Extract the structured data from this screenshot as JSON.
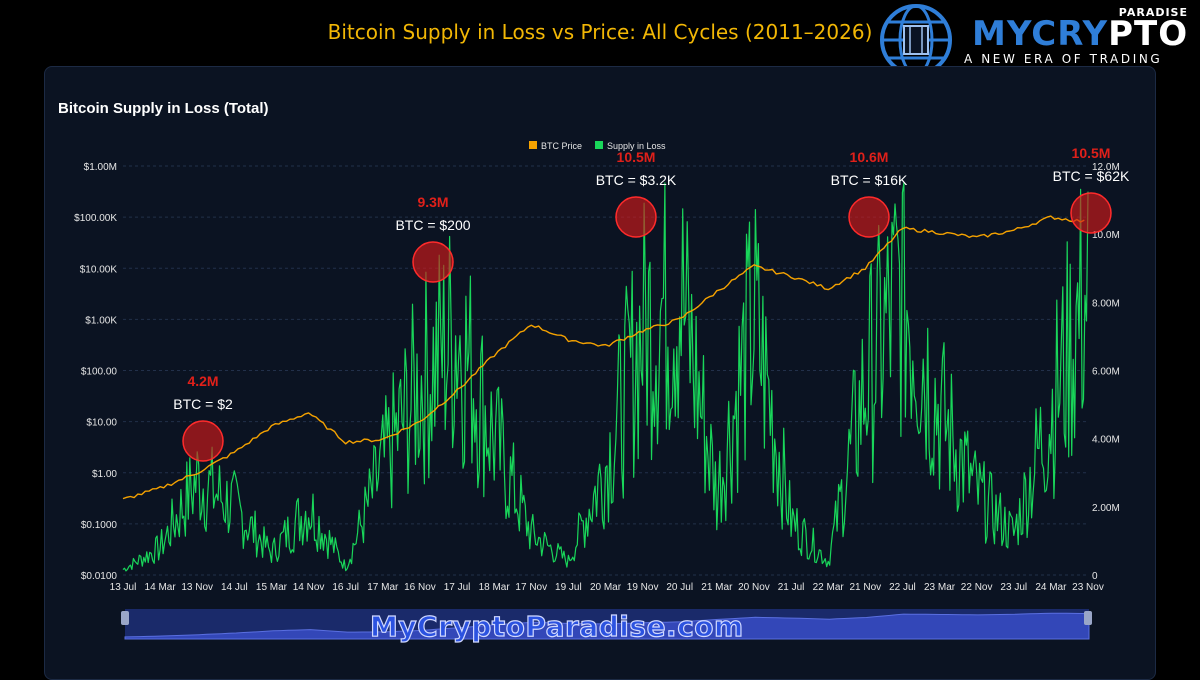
{
  "page": {
    "title": "Bitcoin Supply in Loss vs Price: All Cycles (2011–2026)",
    "watermark": "MyCryptoParadise.com"
  },
  "logo": {
    "brand_blue": "MYCRY",
    "brand_white": "PTO",
    "paradise": "PARADISE",
    "tagline": "A NEW ERA OF TRADING",
    "icon": "globe-circuit-icon"
  },
  "colors": {
    "price": "#f5a200",
    "supply": "#19d65a",
    "marker": "#d11a1a",
    "annotation_value": "#e0201a",
    "title": "#f2b705"
  },
  "chart_data": {
    "type": "line",
    "title": "Bitcoin Supply in Loss (Total)",
    "legend": {
      "position": "top-center",
      "entries": [
        "BTC Price",
        "Supply in Loss"
      ]
    },
    "x_ticks": [
      "13 Jul",
      "14 Mar",
      "13 Nov",
      "14 Jul",
      "15 Mar",
      "14 Nov",
      "16 Jul",
      "17 Mar",
      "16 Nov",
      "17 Jul",
      "18 Mar",
      "17 Nov",
      "19 Jul",
      "20 Mar",
      "19 Nov",
      "20 Jul",
      "21 Mar",
      "20 Nov",
      "21 Jul",
      "22 Mar",
      "21 Nov",
      "22 Jul",
      "23 Mar",
      "22 Nov",
      "23 Jul",
      "24 Mar",
      "23 Nov"
    ],
    "y_left": {
      "scale": "log",
      "ticks": [
        "$0.0100",
        "$0.1000",
        "$1.00",
        "$10.00",
        "$100.00",
        "$1.00K",
        "$10.00K",
        "$100.00K",
        "$1.00M"
      ],
      "range": [
        0.01,
        1000000
      ]
    },
    "y_right": {
      "scale": "linear",
      "ticks": [
        "0",
        "2.00M",
        "4.00M",
        "6.00M",
        "8.00M",
        "10.0M",
        "12.0M"
      ],
      "range": [
        0,
        12000000
      ]
    },
    "grid": "horizontal dashed",
    "series": [
      {
        "name": "BTC Price",
        "axis": "left",
        "x": [
          0,
          1,
          2,
          3,
          4,
          5,
          6,
          7,
          8,
          9,
          10,
          11,
          12,
          13,
          14,
          15,
          16,
          17,
          18,
          19,
          20,
          21,
          22,
          23,
          24,
          25,
          26
        ],
        "values": [
          0.3,
          0.5,
          1.0,
          2.5,
          8.0,
          15.0,
          4.0,
          4.5,
          10.0,
          40.0,
          200.0,
          800.0,
          400.0,
          300.0,
          600.0,
          1000.0,
          3500.0,
          11000.0,
          7000.0,
          4000.0,
          10000.0,
          60000.0,
          50000.0,
          40000.0,
          55000.0,
          100000.0,
          80000.0
        ]
      },
      {
        "name": "Supply in Loss",
        "axis": "right",
        "x": [
          0,
          1,
          2,
          3,
          4,
          5,
          6,
          7,
          8,
          9,
          10,
          11,
          12,
          13,
          14,
          15,
          16,
          17,
          18,
          19,
          20,
          21,
          22,
          23,
          24,
          25,
          26
        ],
        "values": [
          200000,
          1000000,
          3500000,
          2500000,
          800000,
          2500000,
          300000,
          4000000,
          7000000,
          9000000,
          5000000,
          1500000,
          500000,
          4000000,
          9000000,
          10500000,
          3000000,
          9500000,
          2000000,
          500000,
          7000000,
          10600000,
          6000000,
          3000000,
          1500000,
          6000000,
          10500000
        ]
      }
    ],
    "annotations": [
      {
        "value": "4.2M",
        "label": "BTC = $2",
        "x": 2.6
      },
      {
        "value": "9.3M",
        "label": "BTC = $200",
        "x": 9.8
      },
      {
        "value": "10.5M",
        "label": "BTC = $3.2K",
        "x": 16.9
      },
      {
        "value": "10.6M",
        "label": "BTC = $16K",
        "x": 22.8
      },
      {
        "value": "10.5M",
        "label": "BTC = $62K",
        "x": 29.4
      }
    ]
  }
}
